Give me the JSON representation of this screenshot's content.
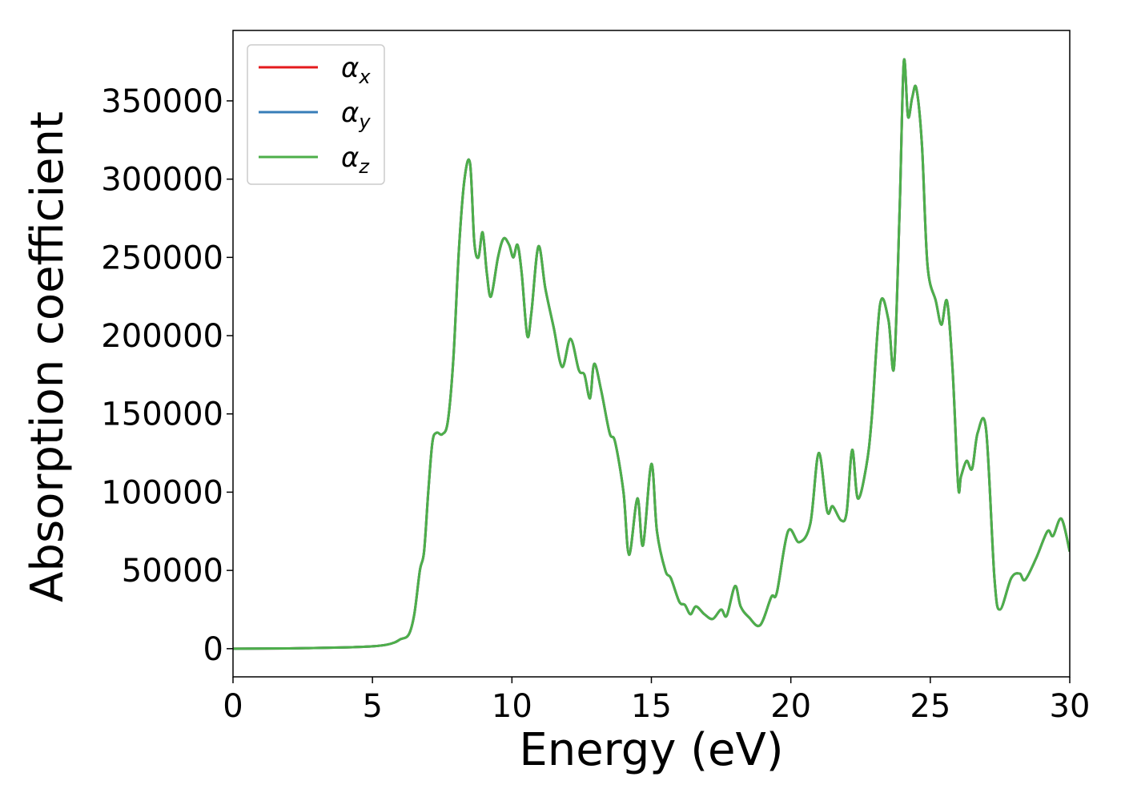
{
  "chart_data": {
    "type": "line",
    "title": "",
    "xlabel": "Energy (eV)",
    "ylabel": "Absorption coefficient",
    "xlim": [
      0,
      30
    ],
    "ylim": [
      -18000,
      395000
    ],
    "xticks": [
      0,
      5,
      10,
      15,
      20,
      25,
      30
    ],
    "yticks": [
      0,
      50000,
      100000,
      150000,
      200000,
      250000,
      300000,
      350000
    ],
    "grid": false,
    "legend_position": "top-left",
    "x": [
      0,
      2,
      4,
      5,
      5.5,
      5.8,
      6.0,
      6.3,
      6.5,
      6.7,
      6.85,
      7.0,
      7.15,
      7.3,
      7.5,
      7.7,
      7.9,
      8.1,
      8.3,
      8.5,
      8.65,
      8.8,
      8.95,
      9.1,
      9.25,
      9.5,
      9.7,
      9.9,
      10.05,
      10.2,
      10.35,
      10.55,
      10.7,
      10.95,
      11.2,
      11.5,
      11.8,
      12.1,
      12.4,
      12.6,
      12.8,
      12.95,
      13.2,
      13.5,
      13.7,
      14.0,
      14.2,
      14.5,
      14.7,
      15.0,
      15.2,
      15.5,
      15.7,
      16.0,
      16.2,
      16.4,
      16.6,
      16.9,
      17.2,
      17.5,
      17.7,
      18.0,
      18.2,
      18.5,
      18.9,
      19.3,
      19.5,
      19.9,
      20.3,
      20.7,
      21.0,
      21.3,
      21.5,
      21.8,
      22.0,
      22.2,
      22.4,
      22.7,
      22.9,
      23.2,
      23.5,
      23.7,
      23.9,
      24.05,
      24.2,
      24.35,
      24.5,
      24.7,
      24.9,
      25.2,
      25.4,
      25.6,
      25.8,
      26.0,
      26.1,
      26.3,
      26.5,
      26.7,
      27.0,
      27.3,
      27.5,
      27.9,
      28.2,
      28.4,
      28.8,
      29.2,
      29.4,
      29.7,
      30.0
    ],
    "series": [
      {
        "name": "αx",
        "color": "#e41a1c",
        "values": [
          0,
          200,
          800,
          1500,
          2500,
          4000,
          6000,
          9000,
          22000,
          50000,
          62000,
          100000,
          132000,
          138000,
          137000,
          145000,
          185000,
          255000,
          300000,
          310000,
          260000,
          250000,
          266000,
          240000,
          225000,
          250000,
          262000,
          258000,
          250000,
          258000,
          240000,
          200000,
          215000,
          257000,
          230000,
          205000,
          180000,
          198000,
          178000,
          175000,
          160000,
          182000,
          165000,
          138000,
          132000,
          100000,
          60000,
          96000,
          66000,
          118000,
          75000,
          50000,
          45000,
          30000,
          28000,
          22000,
          27000,
          22000,
          19000,
          25000,
          21000,
          40000,
          27000,
          20000,
          15000,
          33000,
          36000,
          75000,
          68000,
          80000,
          125000,
          88000,
          91000,
          82000,
          87000,
          127000,
          96000,
          116000,
          147000,
          220000,
          210000,
          180000,
          280000,
          375000,
          340000,
          352000,
          358000,
          322000,
          245000,
          222000,
          207000,
          222000,
          178000,
          104000,
          110000,
          120000,
          115000,
          138000,
          140000,
          45000,
          25000,
          45000,
          48000,
          44000,
          58000,
          75000,
          72000,
          83000,
          62000
        ]
      },
      {
        "name": "αy",
        "color": "#377eb8",
        "values": [
          0,
          200,
          800,
          1500,
          2500,
          4000,
          6000,
          9000,
          22000,
          50000,
          62000,
          100000,
          132000,
          138000,
          137000,
          145000,
          185000,
          255000,
          300000,
          310000,
          260000,
          250000,
          266000,
          240000,
          225000,
          250000,
          262000,
          258000,
          250000,
          258000,
          240000,
          200000,
          215000,
          257000,
          230000,
          205000,
          180000,
          198000,
          178000,
          175000,
          160000,
          182000,
          165000,
          138000,
          132000,
          100000,
          60000,
          96000,
          66000,
          118000,
          75000,
          50000,
          45000,
          30000,
          28000,
          22000,
          27000,
          22000,
          19000,
          25000,
          21000,
          40000,
          27000,
          20000,
          15000,
          33000,
          36000,
          75000,
          68000,
          80000,
          125000,
          88000,
          91000,
          82000,
          87000,
          127000,
          96000,
          116000,
          147000,
          220000,
          210000,
          180000,
          280000,
          375000,
          340000,
          352000,
          358000,
          322000,
          245000,
          222000,
          207000,
          222000,
          178000,
          104000,
          110000,
          120000,
          115000,
          138000,
          140000,
          45000,
          25000,
          45000,
          48000,
          44000,
          58000,
          75000,
          72000,
          83000,
          62000
        ]
      },
      {
        "name": "αz",
        "color": "#4daf4a",
        "values": [
          0,
          200,
          800,
          1500,
          2500,
          4000,
          6000,
          9000,
          22000,
          50000,
          62000,
          100000,
          132000,
          138000,
          137000,
          145000,
          185000,
          255000,
          300000,
          310000,
          260000,
          250000,
          266000,
          240000,
          225000,
          250000,
          262000,
          258000,
          250000,
          258000,
          240000,
          200000,
          215000,
          257000,
          230000,
          205000,
          180000,
          198000,
          178000,
          175000,
          160000,
          182000,
          165000,
          138000,
          132000,
          100000,
          60000,
          96000,
          66000,
          118000,
          75000,
          50000,
          45000,
          30000,
          28000,
          22000,
          27000,
          22000,
          19000,
          25000,
          21000,
          40000,
          27000,
          20000,
          15000,
          33000,
          36000,
          75000,
          68000,
          80000,
          125000,
          88000,
          91000,
          82000,
          87000,
          127000,
          96000,
          116000,
          147000,
          220000,
          210000,
          180000,
          280000,
          375000,
          340000,
          352000,
          358000,
          322000,
          245000,
          222000,
          207000,
          222000,
          178000,
          104000,
          110000,
          120000,
          115000,
          138000,
          140000,
          45000,
          25000,
          45000,
          48000,
          44000,
          58000,
          75000,
          72000,
          83000,
          62000
        ]
      }
    ]
  }
}
